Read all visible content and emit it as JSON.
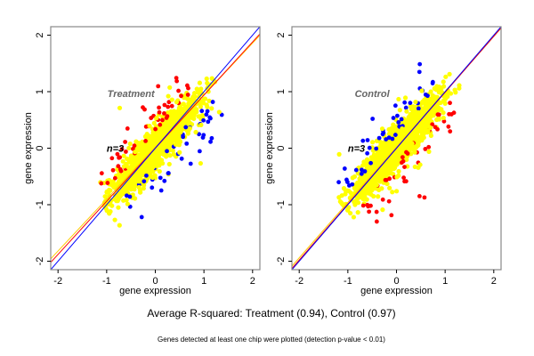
{
  "chart_data": [
    {
      "type": "scatter",
      "title": "Treatment",
      "annotation": "n=3",
      "xlabel": "gene expression",
      "ylabel": "gene expression",
      "xlim": [
        -2.15,
        2.15
      ],
      "ylim": [
        -2.15,
        2.15
      ],
      "xticks": [
        "-2",
        "-1",
        "0",
        "1",
        "2"
      ],
      "yticks": [
        "-2",
        "-1",
        "0",
        "1",
        "2"
      ],
      "cloud": {
        "x_range": [
          -1.1,
          1.25
        ],
        "y_range": [
          -1.1,
          1.25
        ]
      },
      "lines": [
        {
          "color": "#0000ff",
          "slope": 1.0,
          "intercept": 0.0
        },
        {
          "color": "#ff0000",
          "slope": 0.94,
          "intercept": 0.0
        },
        {
          "color": "#ffcc00",
          "slope": 0.92,
          "intercept": 0.02
        }
      ],
      "series_colors": {
        "main": "#ffff00",
        "up": "#ff0000",
        "down": "#0000ff"
      }
    },
    {
      "type": "scatter",
      "title": "Control",
      "annotation": "n=3",
      "xlabel": "gene expression",
      "ylabel": "gene expression",
      "xlim": [
        -2.15,
        2.15
      ],
      "ylim": [
        -2.15,
        2.15
      ],
      "xticks": [
        "-2",
        "-1",
        "0",
        "1",
        "2"
      ],
      "yticks": [
        "-2",
        "-1",
        "0",
        "1",
        "2"
      ],
      "cloud": {
        "x_range": [
          -1.1,
          1.3
        ],
        "y_range": [
          -1.1,
          1.25
        ]
      },
      "lines": [
        {
          "color": "#0000ff",
          "slope": 1.0,
          "intercept": 0.0
        },
        {
          "color": "#ff0000",
          "slope": 0.99,
          "intercept": 0.0
        },
        {
          "color": "#ffcc00",
          "slope": 0.98,
          "intercept": 0.02
        }
      ],
      "series_colors": {
        "main": "#ffff00",
        "up": "#0000ff",
        "down": "#ff0000"
      }
    }
  ],
  "footer": {
    "main_title": "Average R-squared: Treatment (0.94), Control (0.97)",
    "subtitle": "Genes detected at least one chip were plotted (detection p-value < 0.01)"
  }
}
